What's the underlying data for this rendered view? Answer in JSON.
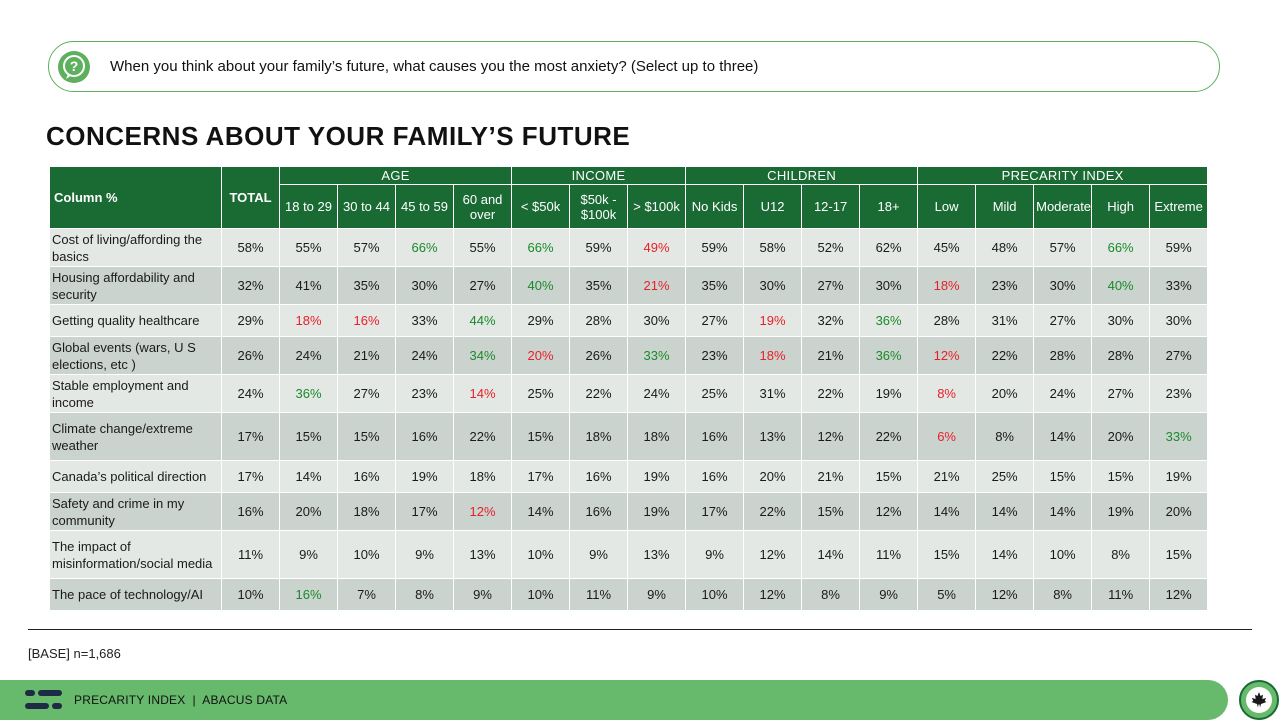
{
  "question": {
    "icon": "question-bubble-icon",
    "text": "When you think about your family’s future, what causes you the most anxiety? (Select up to three)"
  },
  "title": "CONCERNS ABOUT YOUR FAMILY’S FUTURE",
  "colors": {
    "header": "#1a6b33",
    "accent": "#67b96b",
    "row_light": "#e3e8e4",
    "row_dark": "#cbd3ce",
    "high": "#1a8a2a",
    "low": "#e8202a"
  },
  "chart_data": {
    "type": "table",
    "corner_label": "Column %",
    "total_label": "TOTAL",
    "groups": [
      {
        "name": "AGE",
        "columns": [
          "18 to 29",
          "30 to 44",
          "45 to 59",
          "60 and over"
        ]
      },
      {
        "name": "INCOME",
        "columns": [
          "< $50k",
          "$50k - $100k",
          "> $100k"
        ]
      },
      {
        "name": "CHILDREN",
        "columns": [
          "No Kids",
          "U12",
          "12-17",
          "18+"
        ]
      },
      {
        "name": "PRECARITY INDEX",
        "columns": [
          "Low",
          "Mild",
          "Moderate",
          "High",
          "Extreme"
        ]
      }
    ],
    "rows": [
      {
        "label": "Cost of living/affording the basics",
        "values": [
          "58%",
          "55%",
          "57%",
          "66%",
          "55%",
          "66%",
          "59%",
          "49%",
          "59%",
          "58%",
          "52%",
          "62%",
          "45%",
          "48%",
          "57%",
          "66%",
          "59%"
        ],
        "flags": [
          "",
          "",
          "",
          "g",
          "",
          "g",
          "",
          "r",
          "",
          "",
          "",
          "",
          "",
          "",
          "",
          "g",
          ""
        ]
      },
      {
        "label": "Housing affordability and security",
        "values": [
          "32%",
          "41%",
          "35%",
          "30%",
          "27%",
          "40%",
          "35%",
          "21%",
          "35%",
          "30%",
          "27%",
          "30%",
          "18%",
          "23%",
          "30%",
          "40%",
          "33%"
        ],
        "flags": [
          "",
          "",
          "",
          "",
          "",
          "g",
          "",
          "r",
          "",
          "",
          "",
          "",
          "r",
          "",
          "",
          "g",
          ""
        ]
      },
      {
        "label": "Getting quality healthcare",
        "values": [
          "29%",
          "18%",
          "16%",
          "33%",
          "44%",
          "29%",
          "28%",
          "30%",
          "27%",
          "19%",
          "32%",
          "36%",
          "28%",
          "31%",
          "27%",
          "30%",
          "30%"
        ],
        "flags": [
          "",
          "r",
          "r",
          "",
          "g",
          "",
          "",
          "",
          "",
          "r",
          "",
          "g",
          "",
          "",
          "",
          "",
          ""
        ]
      },
      {
        "label": "Global events (wars, U S elections, etc )",
        "values": [
          "26%",
          "24%",
          "21%",
          "24%",
          "34%",
          "20%",
          "26%",
          "33%",
          "23%",
          "18%",
          "21%",
          "36%",
          "12%",
          "22%",
          "28%",
          "28%",
          "27%"
        ],
        "flags": [
          "",
          "",
          "",
          "",
          "g",
          "r",
          "",
          "g",
          "",
          "r",
          "",
          "g",
          "r",
          "",
          "",
          "",
          ""
        ]
      },
      {
        "label": "Stable employment and income",
        "values": [
          "24%",
          "36%",
          "27%",
          "23%",
          "14%",
          "25%",
          "22%",
          "24%",
          "25%",
          "31%",
          "22%",
          "19%",
          "8%",
          "20%",
          "24%",
          "27%",
          "23%"
        ],
        "flags": [
          "",
          "g",
          "",
          "",
          "r",
          "",
          "",
          "",
          "",
          "",
          "",
          "",
          "r",
          "",
          "",
          "",
          ""
        ]
      },
      {
        "label": "Climate change/extreme weather",
        "values": [
          "17%",
          "15%",
          "15%",
          "16%",
          "22%",
          "15%",
          "18%",
          "18%",
          "16%",
          "13%",
          "12%",
          "22%",
          "6%",
          "8%",
          "14%",
          "20%",
          "33%"
        ],
        "flags": [
          "",
          "",
          "",
          "",
          "",
          "",
          "",
          "",
          "",
          "",
          "",
          "",
          "r",
          "",
          "",
          "",
          "g"
        ]
      },
      {
        "label": "Canada’s political direction",
        "values": [
          "17%",
          "14%",
          "16%",
          "19%",
          "18%",
          "17%",
          "16%",
          "19%",
          "16%",
          "20%",
          "21%",
          "15%",
          "21%",
          "25%",
          "15%",
          "15%",
          "19%"
        ],
        "flags": [
          "",
          "",
          "",
          "",
          "",
          "",
          "",
          "",
          "",
          "",
          "",
          "",
          "",
          "",
          "",
          "",
          ""
        ]
      },
      {
        "label": "Safety and crime in my community",
        "values": [
          "16%",
          "20%",
          "18%",
          "17%",
          "12%",
          "14%",
          "16%",
          "19%",
          "17%",
          "22%",
          "15%",
          "12%",
          "14%",
          "14%",
          "14%",
          "19%",
          "20%"
        ],
        "flags": [
          "",
          "",
          "",
          "",
          "r",
          "",
          "",
          "",
          "",
          "",
          "",
          "",
          "",
          "",
          "",
          "",
          ""
        ]
      },
      {
        "label": "The impact of misinformation/social media",
        "values": [
          "11%",
          "9%",
          "10%",
          "9%",
          "13%",
          "10%",
          "9%",
          "13%",
          "9%",
          "12%",
          "14%",
          "11%",
          "15%",
          "14%",
          "10%",
          "8%",
          "15%"
        ],
        "flags": [
          "",
          "",
          "",
          "",
          "",
          "",
          "",
          "",
          "",
          "",
          "",
          "",
          "",
          "",
          "",
          "",
          ""
        ]
      },
      {
        "label": "The pace of technology/AI",
        "values": [
          "10%",
          "16%",
          "7%",
          "8%",
          "9%",
          "10%",
          "11%",
          "9%",
          "10%",
          "12%",
          "8%",
          "9%",
          "5%",
          "12%",
          "8%",
          "11%",
          "12%"
        ],
        "flags": [
          "",
          "g",
          "",
          "",
          "",
          "",
          "",
          "",
          "",
          "",
          "",
          "",
          "",
          "",
          "",
          "",
          ""
        ]
      }
    ]
  },
  "base_note": "[BASE] n=1,686",
  "footer": {
    "text": "PRECARITY INDEX  |  ABACUS DATA",
    "logo_icon": "abacus-logo-icon",
    "badge_icon": "maple-leaf-icon"
  }
}
